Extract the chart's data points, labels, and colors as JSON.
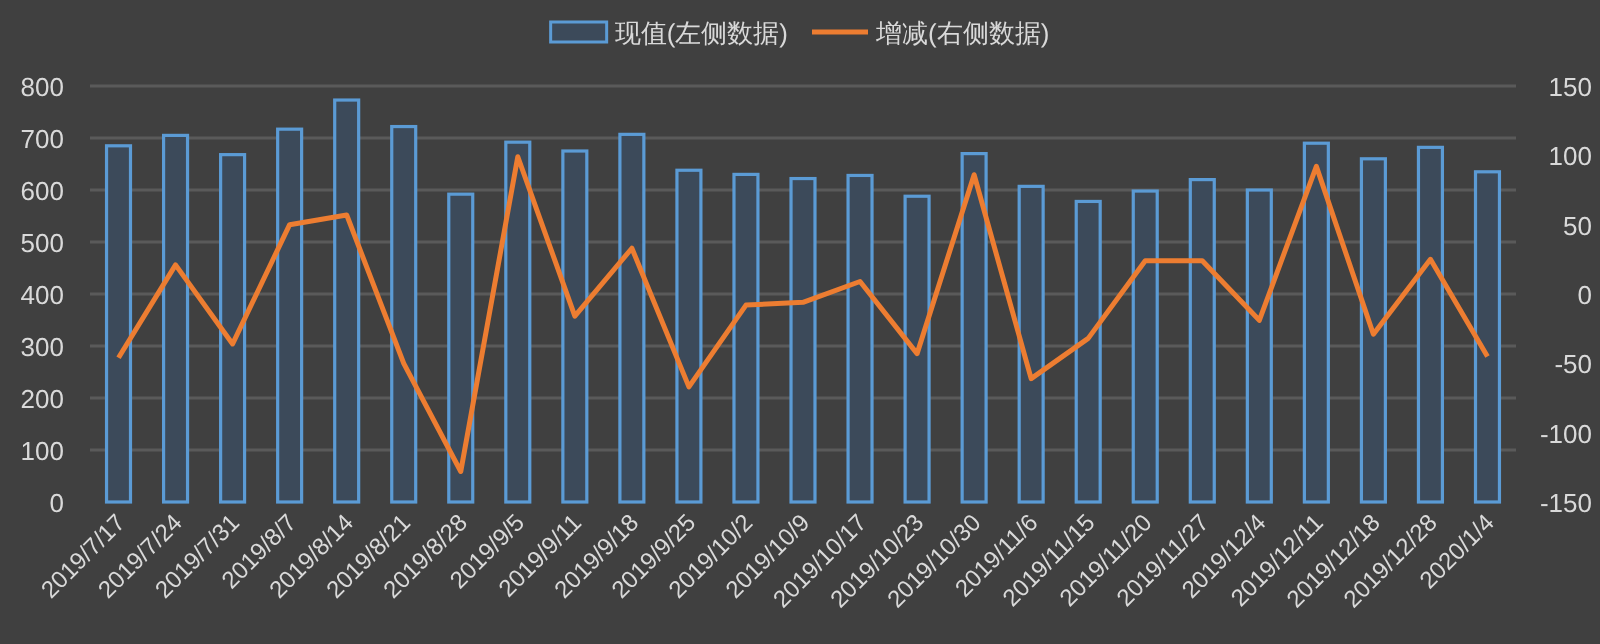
{
  "chart_data": {
    "type": "bar",
    "categories": [
      "2019/7/17",
      "2019/7/24",
      "2019/7/31",
      "2019/8/7",
      "2019/8/14",
      "2019/8/21",
      "2019/8/28",
      "2019/9/5",
      "2019/9/11",
      "2019/9/18",
      "2019/9/25",
      "2019/10/2",
      "2019/10/9",
      "2019/10/17",
      "2019/10/23",
      "2019/10/30",
      "2019/11/6",
      "2019/11/15",
      "2019/11/20",
      "2019/11/27",
      "2019/12/4",
      "2019/12/11",
      "2019/12/18",
      "2019/12/28",
      "2020/1/4"
    ],
    "series": [
      {
        "name": "现值(左侧数据)",
        "color": "#5b9bd5",
        "values": [
          685,
          705,
          668,
          717,
          773,
          722,
          592,
          692,
          675,
          707,
          638,
          630,
          622,
          628,
          588,
          670,
          607,
          578,
          598,
          620,
          600,
          690,
          660,
          682,
          635
        ]
      },
      {
        "name": "增减(右侧数据)",
        "type": "line",
        "axis": "y2",
        "color": "#ed7d31",
        "values": [
          -46,
          21,
          -36,
          50,
          57,
          -50,
          -128,
          99,
          -16,
          33,
          -67,
          -8,
          -6,
          9,
          -43,
          86,
          -61,
          -32,
          24,
          24,
          -19,
          92,
          -29,
          25,
          -45
        ]
      }
    ],
    "ylim": [
      0,
      800
    ],
    "yticks": [
      0,
      100,
      200,
      300,
      400,
      500,
      600,
      700,
      800
    ],
    "y2lim": [
      -150,
      150
    ],
    "y2ticks": [
      -150,
      -100,
      -50,
      0,
      50,
      100,
      150
    ],
    "grid": "y",
    "legend": "top"
  }
}
